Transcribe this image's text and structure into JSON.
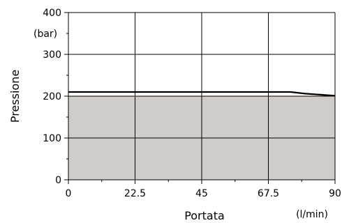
{
  "chart_data": {
    "type": "area",
    "title": "",
    "xlabel": "Portata",
    "ylabel": "Pressione",
    "x_unit": "(l/min)",
    "y_unit": "(bar)",
    "xlim": [
      0,
      90
    ],
    "ylim": [
      0,
      400
    ],
    "x_ticks": [
      0,
      22.5,
      45,
      67.5,
      90
    ],
    "x_tick_labels": [
      "0",
      "22.5",
      "45",
      "67.5",
      "90"
    ],
    "x_minor_ticks": [
      11.25,
      33.75,
      56.25,
      78.75
    ],
    "y_ticks": [
      0,
      100,
      200,
      300,
      400
    ],
    "y_tick_labels": [
      "0",
      "100",
      "200",
      "300",
      "400"
    ],
    "y_minor_ticks": [
      50,
      150,
      250,
      350
    ],
    "grid": true,
    "fill_level": 200,
    "fill_color": "#d0ccc8",
    "line_color": "#000000",
    "series": [
      {
        "x": [
          0,
          75,
          80,
          90
        ],
        "y": [
          210,
          210,
          206,
          201
        ]
      }
    ]
  }
}
